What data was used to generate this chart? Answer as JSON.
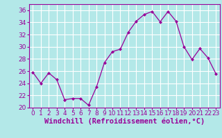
{
  "x": [
    0,
    1,
    2,
    3,
    4,
    5,
    6,
    7,
    8,
    9,
    10,
    11,
    12,
    13,
    14,
    15,
    16,
    17,
    18,
    19,
    20,
    21,
    22,
    23
  ],
  "y": [
    25.8,
    24.0,
    25.7,
    24.6,
    21.3,
    21.5,
    21.5,
    20.4,
    23.4,
    27.4,
    29.2,
    29.6,
    32.4,
    34.2,
    35.3,
    35.8,
    34.1,
    35.8,
    34.2,
    30.0,
    27.9,
    29.7,
    28.2,
    25.6
  ],
  "line_color": "#990099",
  "marker": "D",
  "marker_size": 2,
  "bg_color": "#b3e8e8",
  "grid_color": "#ffffff",
  "xlabel": "Windchill (Refroidissement éolien,°C)",
  "xlim": [
    -0.5,
    23.5
  ],
  "ylim": [
    20,
    37
  ],
  "yticks": [
    20,
    22,
    24,
    26,
    28,
    30,
    32,
    34,
    36
  ],
  "xticks": [
    0,
    1,
    2,
    3,
    4,
    5,
    6,
    7,
    8,
    9,
    10,
    11,
    12,
    13,
    14,
    15,
    16,
    17,
    18,
    19,
    20,
    21,
    22,
    23
  ],
  "tick_color": "#990099",
  "label_color": "#990099",
  "tick_fontsize": 6.5,
  "xlabel_fontsize": 7.5,
  "spine_color": "#990099",
  "axis_bg": "#b3e8e8",
  "bottom_bar_color": "#7777bb"
}
